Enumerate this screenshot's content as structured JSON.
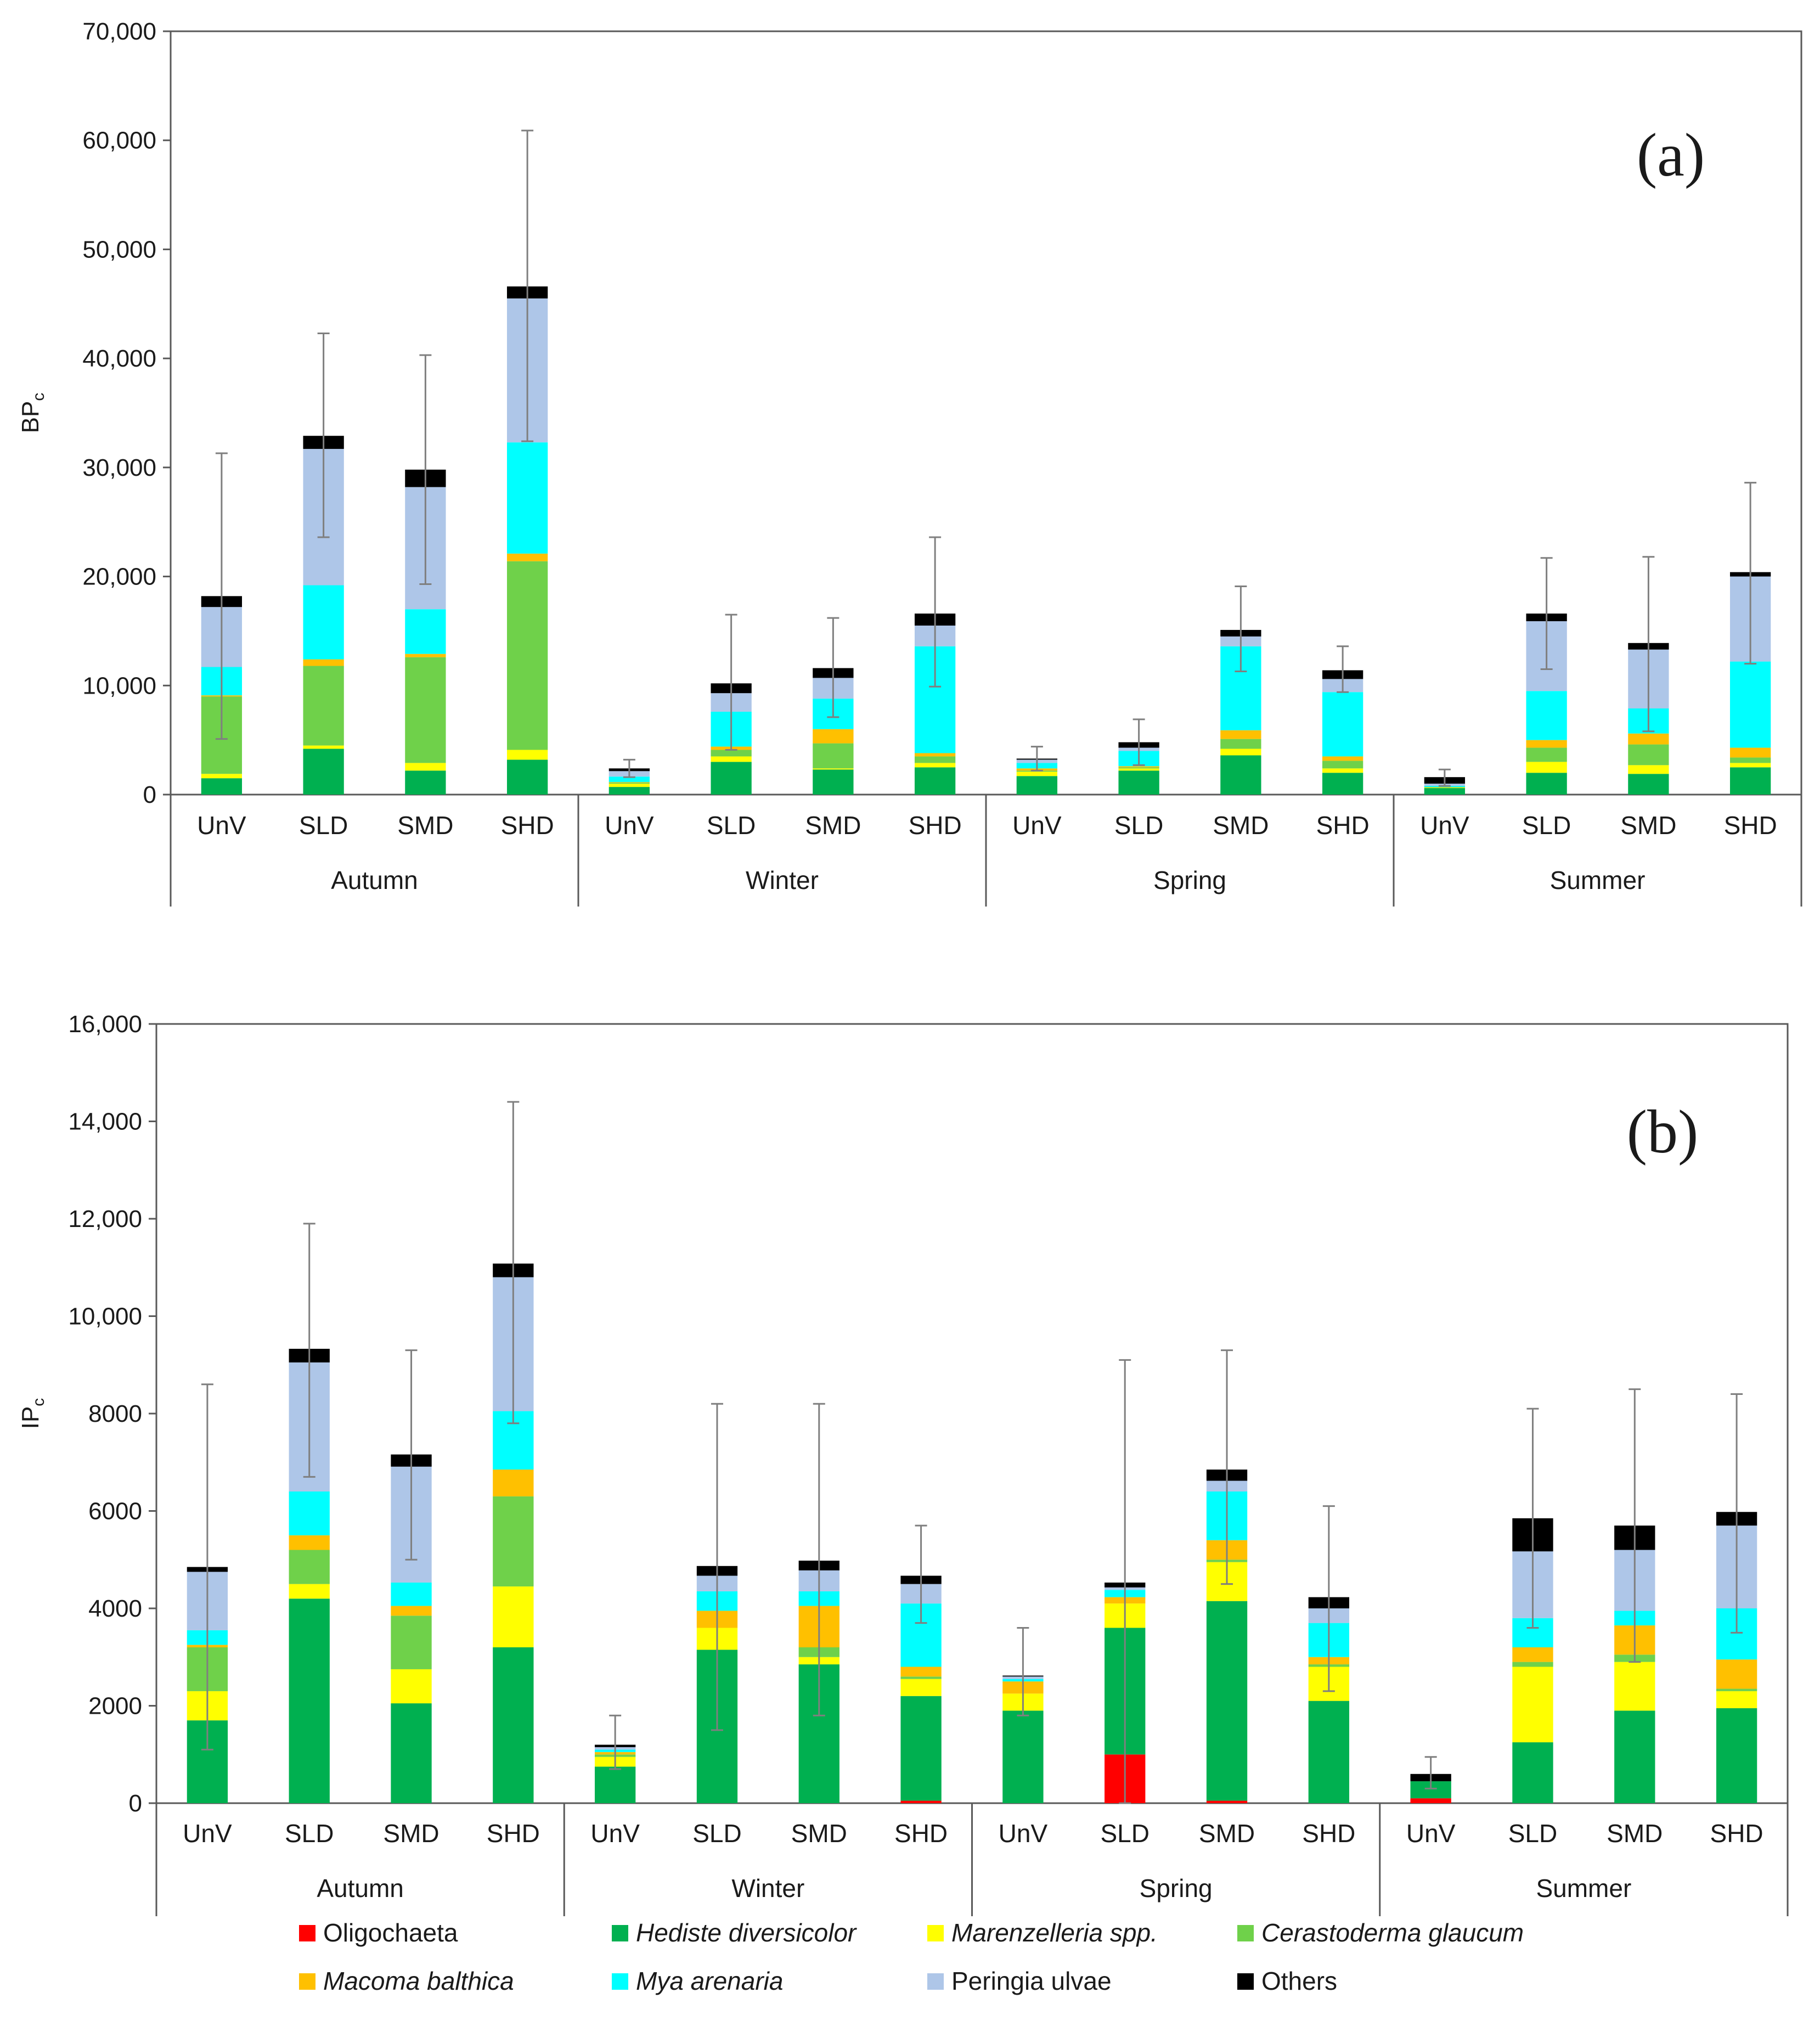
{
  "legend": {
    "items": [
      {
        "key": "oligo",
        "label": "Oligochaeta",
        "color": "#ff0000",
        "italic": false
      },
      {
        "key": "hediste",
        "label": "Hediste diversicolor",
        "color": "#00b050",
        "italic": true
      },
      {
        "key": "maren",
        "label": "Marenzelleria spp.",
        "color": "#ffff00",
        "italic": true
      },
      {
        "key": "cerast",
        "label": "Cerastoderma glaucum",
        "color": "#6fd14a",
        "italic": true
      },
      {
        "key": "macoma",
        "label": "Macoma balthica",
        "color": "#ffc000",
        "italic": true
      },
      {
        "key": "mya",
        "label": "Mya arenaria",
        "color": "#00ffff",
        "italic": true
      },
      {
        "key": "peringia",
        "label": "Peringia ulvae",
        "color": "#aec6e8",
        "italic": false
      },
      {
        "key": "others",
        "label": "Others",
        "color": "#000000",
        "italic": false
      }
    ]
  },
  "chart_data": [
    {
      "type": "bar",
      "stacked": true,
      "panel_label": "(a)",
      "ylabel": "BP",
      "ylabel_sub": "c",
      "ylim": [
        0,
        70000
      ],
      "yticks": [
        0,
        10000,
        20000,
        30000,
        40000,
        50000,
        60000,
        70000
      ],
      "ytick_labels": [
        "0",
        "10,000",
        "20,000",
        "30,000",
        "40,000",
        "50,000",
        "60,000",
        "70,000"
      ],
      "groups": [
        "Autumn",
        "Winter",
        "Spring",
        "Summer"
      ],
      "categories": [
        "UnV",
        "SLD",
        "SMD",
        "SHD"
      ],
      "series_order": [
        "oligo",
        "hediste",
        "maren",
        "cerast",
        "macoma",
        "mya",
        "peringia",
        "others"
      ],
      "bars": [
        {
          "group": "Autumn",
          "category": "UnV",
          "values": {
            "oligo": 0,
            "hediste": 1500,
            "maren": 400,
            "cerast": 7100,
            "macoma": 100,
            "mya": 2600,
            "peringia": 5500,
            "others": 1000
          },
          "error": [
            5100,
            31300
          ]
        },
        {
          "group": "Autumn",
          "category": "SLD",
          "values": {
            "oligo": 0,
            "hediste": 4200,
            "maren": 300,
            "cerast": 7300,
            "macoma": 600,
            "mya": 6800,
            "peringia": 12500,
            "others": 1200
          },
          "error": [
            23600,
            42300
          ]
        },
        {
          "group": "Autumn",
          "category": "SMD",
          "values": {
            "oligo": 0,
            "hediste": 2200,
            "maren": 700,
            "cerast": 9700,
            "macoma": 300,
            "mya": 4100,
            "peringia": 11200,
            "others": 1600
          },
          "error": [
            19300,
            40300
          ]
        },
        {
          "group": "Autumn",
          "category": "SHD",
          "values": {
            "oligo": 0,
            "hediste": 3200,
            "maren": 900,
            "cerast": 17300,
            "macoma": 700,
            "mya": 10200,
            "peringia": 13200,
            "others": 1100
          },
          "error": [
            32400,
            60900
          ]
        },
        {
          "group": "Winter",
          "category": "UnV",
          "values": {
            "oligo": 0,
            "hediste": 700,
            "maren": 300,
            "cerast": 100,
            "macoma": 50,
            "mya": 500,
            "peringia": 500,
            "others": 250
          },
          "error": [
            1600,
            3200
          ]
        },
        {
          "group": "Winter",
          "category": "SLD",
          "values": {
            "oligo": 0,
            "hediste": 3000,
            "maren": 500,
            "cerast": 600,
            "macoma": 300,
            "mya": 3200,
            "peringia": 1700,
            "others": 900
          },
          "error": [
            4100,
            16500
          ]
        },
        {
          "group": "Winter",
          "category": "SMD",
          "values": {
            "oligo": 0,
            "hediste": 2300,
            "maren": 100,
            "cerast": 2300,
            "macoma": 1300,
            "mya": 2800,
            "peringia": 1900,
            "others": 900
          },
          "error": [
            7100,
            16200
          ]
        },
        {
          "group": "Winter",
          "category": "SHD",
          "values": {
            "oligo": 0,
            "hediste": 2500,
            "maren": 400,
            "cerast": 600,
            "macoma": 300,
            "mya": 9800,
            "peringia": 1900,
            "others": 1100
          },
          "error": [
            9900,
            23600
          ]
        },
        {
          "group": "Spring",
          "category": "UnV",
          "values": {
            "oligo": 0,
            "hediste": 1700,
            "maren": 400,
            "cerast": 100,
            "macoma": 200,
            "mya": 500,
            "peringia": 300,
            "others": 100
          },
          "error": [
            2200,
            4400
          ]
        },
        {
          "group": "Spring",
          "category": "SLD",
          "values": {
            "oligo": 0,
            "hediste": 2200,
            "maren": 200,
            "cerast": 100,
            "macoma": 100,
            "mya": 1400,
            "peringia": 300,
            "others": 500
          },
          "error": [
            2700,
            6900
          ]
        },
        {
          "group": "Spring",
          "category": "SMD",
          "values": {
            "oligo": 0,
            "hediste": 3600,
            "maren": 600,
            "cerast": 900,
            "macoma": 800,
            "mya": 7700,
            "peringia": 900,
            "others": 600
          },
          "error": [
            11300,
            19100
          ]
        },
        {
          "group": "Spring",
          "category": "SHD",
          "values": {
            "oligo": 0,
            "hediste": 2000,
            "maren": 400,
            "cerast": 700,
            "macoma": 400,
            "mya": 5900,
            "peringia": 1200,
            "others": 800
          },
          "error": [
            9400,
            13600
          ]
        },
        {
          "group": "Summer",
          "category": "UnV",
          "values": {
            "oligo": 0,
            "hediste": 600,
            "maren": 50,
            "cerast": 50,
            "macoma": 0,
            "mya": 100,
            "peringia": 200,
            "others": 600
          },
          "error": [
            800,
            2300
          ]
        },
        {
          "group": "Summer",
          "category": "SLD",
          "values": {
            "oligo": 0,
            "hediste": 2000,
            "maren": 1000,
            "cerast": 1300,
            "macoma": 700,
            "mya": 4500,
            "peringia": 6400,
            "others": 700
          },
          "error": [
            11500,
            21700
          ]
        },
        {
          "group": "Summer",
          "category": "SMD",
          "values": {
            "oligo": 0,
            "hediste": 1900,
            "maren": 800,
            "cerast": 1900,
            "macoma": 1000,
            "mya": 2300,
            "peringia": 5400,
            "others": 600
          },
          "error": [
            5800,
            21800
          ]
        },
        {
          "group": "Summer",
          "category": "SHD",
          "values": {
            "oligo": 0,
            "hediste": 2500,
            "maren": 400,
            "cerast": 500,
            "macoma": 900,
            "mya": 7900,
            "peringia": 7800,
            "others": 400
          },
          "error": [
            12000,
            28600
          ]
        }
      ]
    },
    {
      "type": "bar",
      "stacked": true,
      "panel_label": "(b)",
      "ylabel": "IP",
      "ylabel_sub": "c",
      "ylim": [
        0,
        16000
      ],
      "yticks": [
        0,
        2000,
        4000,
        6000,
        8000,
        10000,
        12000,
        14000,
        16000
      ],
      "ytick_labels": [
        "0",
        "2000",
        "4000",
        "6000",
        "8000",
        "10,000",
        "12,000",
        "14,000",
        "16,000"
      ],
      "groups": [
        "Autumn",
        "Winter",
        "Spring",
        "Summer"
      ],
      "categories": [
        "UnV",
        "SLD",
        "SMD",
        "SHD"
      ],
      "series_order": [
        "oligo",
        "hediste",
        "maren",
        "cerast",
        "macoma",
        "mya",
        "peringia",
        "others"
      ],
      "bars": [
        {
          "group": "Autumn",
          "category": "UnV",
          "values": {
            "oligo": 0,
            "hediste": 1700,
            "maren": 600,
            "cerast": 900,
            "macoma": 50,
            "mya": 300,
            "peringia": 1200,
            "others": 100
          },
          "error": [
            1100,
            8600
          ]
        },
        {
          "group": "Autumn",
          "category": "SLD",
          "values": {
            "oligo": 0,
            "hediste": 4200,
            "maren": 300,
            "cerast": 700,
            "macoma": 300,
            "mya": 900,
            "peringia": 2650,
            "others": 280
          },
          "error": [
            6700,
            11900
          ]
        },
        {
          "group": "Autumn",
          "category": "SMD",
          "values": {
            "oligo": 0,
            "hediste": 2050,
            "maren": 700,
            "cerast": 1100,
            "macoma": 200,
            "mya": 480,
            "peringia": 2380,
            "others": 250
          },
          "error": [
            5000,
            9300
          ]
        },
        {
          "group": "Autumn",
          "category": "SHD",
          "values": {
            "oligo": 0,
            "hediste": 3200,
            "maren": 1250,
            "cerast": 1850,
            "macoma": 550,
            "mya": 1200,
            "peringia": 2750,
            "others": 280
          },
          "error": [
            7800,
            14400
          ]
        },
        {
          "group": "Winter",
          "category": "UnV",
          "values": {
            "oligo": 0,
            "hediste": 750,
            "maren": 200,
            "cerast": 50,
            "macoma": 50,
            "mya": 50,
            "peringia": 50,
            "others": 50
          },
          "error": [
            700,
            1800
          ]
        },
        {
          "group": "Winter",
          "category": "SLD",
          "values": {
            "oligo": 0,
            "hediste": 3150,
            "maren": 450,
            "cerast": 0,
            "macoma": 350,
            "mya": 400,
            "peringia": 320,
            "others": 200
          },
          "error": [
            1500,
            8200
          ]
        },
        {
          "group": "Winter",
          "category": "SMD",
          "values": {
            "oligo": 0,
            "hediste": 2850,
            "maren": 150,
            "cerast": 200,
            "macoma": 850,
            "mya": 300,
            "peringia": 430,
            "others": 200
          },
          "error": [
            1800,
            8200
          ]
        },
        {
          "group": "Winter",
          "category": "SHD",
          "values": {
            "oligo": 50,
            "hediste": 2150,
            "maren": 350,
            "cerast": 50,
            "macoma": 200,
            "mya": 1300,
            "peringia": 400,
            "others": 170
          },
          "error": [
            3700,
            5700
          ]
        },
        {
          "group": "Spring",
          "category": "UnV",
          "values": {
            "oligo": 0,
            "hediste": 1900,
            "maren": 350,
            "cerast": 0,
            "macoma": 250,
            "mya": 50,
            "peringia": 50,
            "others": 20
          },
          "error": [
            1800,
            3600
          ]
        },
        {
          "group": "Spring",
          "category": "SLD",
          "values": {
            "oligo": 1000,
            "hediste": 2600,
            "maren": 500,
            "cerast": 0,
            "macoma": 130,
            "mya": 150,
            "peringia": 50,
            "others": 100
          },
          "error": [
            0,
            9100
          ]
        },
        {
          "group": "Spring",
          "category": "SMD",
          "values": {
            "oligo": 50,
            "hediste": 4100,
            "maren": 800,
            "cerast": 50,
            "macoma": 400,
            "mya": 1000,
            "peringia": 220,
            "others": 230
          },
          "error": [
            4500,
            9300
          ]
        },
        {
          "group": "Spring",
          "category": "SHD",
          "values": {
            "oligo": 0,
            "hediste": 2100,
            "maren": 700,
            "cerast": 50,
            "macoma": 150,
            "mya": 700,
            "peringia": 300,
            "others": 230
          },
          "error": [
            2300,
            6100
          ]
        },
        {
          "group": "Summer",
          "category": "UnV",
          "values": {
            "oligo": 100,
            "hediste": 350,
            "maren": 0,
            "cerast": 0,
            "macoma": 0,
            "mya": 0,
            "peringia": 0,
            "others": 150
          },
          "error": [
            300,
            950
          ]
        },
        {
          "group": "Summer",
          "category": "SLD",
          "values": {
            "oligo": 0,
            "hediste": 1250,
            "maren": 1550,
            "cerast": 100,
            "macoma": 300,
            "mya": 600,
            "peringia": 1370,
            "others": 680
          },
          "error": [
            3600,
            8100
          ]
        },
        {
          "group": "Summer",
          "category": "SMD",
          "values": {
            "oligo": 0,
            "hediste": 1900,
            "maren": 1000,
            "cerast": 150,
            "macoma": 600,
            "mya": 300,
            "peringia": 1250,
            "others": 500
          },
          "error": [
            2900,
            8500
          ]
        },
        {
          "group": "Summer",
          "category": "SHD",
          "values": {
            "oligo": 0,
            "hediste": 1950,
            "maren": 350,
            "cerast": 50,
            "macoma": 600,
            "mya": 1050,
            "peringia": 1700,
            "others": 280
          },
          "error": [
            3500,
            8400
          ]
        }
      ]
    }
  ]
}
